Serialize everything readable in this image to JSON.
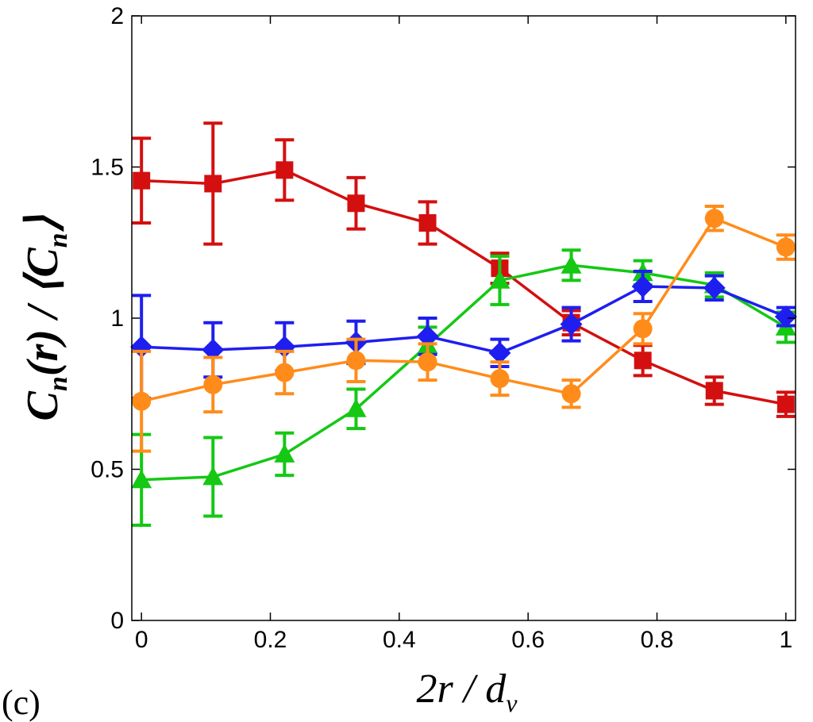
{
  "chart_data": {
    "type": "line",
    "panel_label": "(c)",
    "xlabel": {
      "main": "2r / d",
      "sub": "v"
    },
    "ylabel": {
      "p1": "C",
      "s1": "n",
      "p2": "(r) / ⟨C",
      "s2": "n",
      "p3": "⟩"
    },
    "xlim": [
      -0.015,
      1.015
    ],
    "ylim": [
      0,
      2
    ],
    "xticks": [
      0,
      0.2,
      0.4,
      0.6,
      0.8,
      1
    ],
    "xtick_labels": [
      "0",
      "0.2",
      "0.4",
      "0.6",
      "0.8",
      "1"
    ],
    "yticks": [
      0,
      0.5,
      1,
      1.5,
      2
    ],
    "ytick_labels": [
      "0",
      "0.5",
      "1",
      "1.5",
      "2"
    ],
    "grid": false,
    "series": [
      {
        "name": "red-squares",
        "color": "#d40f0f",
        "marker": "square",
        "x": [
          0,
          0.111,
          0.222,
          0.333,
          0.444,
          0.556,
          0.667,
          0.778,
          0.889,
          1
        ],
        "y": [
          1.455,
          1.445,
          1.49,
          1.38,
          1.315,
          1.165,
          0.985,
          0.86,
          0.76,
          0.715
        ],
        "err": [
          0.14,
          0.2,
          0.1,
          0.085,
          0.07,
          0.05,
          0.04,
          0.05,
          0.045,
          0.04
        ]
      },
      {
        "name": "green-triangles",
        "color": "#14c814",
        "marker": "triangle",
        "x": [
          0,
          0.111,
          0.222,
          0.333,
          0.444,
          0.556,
          0.667,
          0.778,
          0.889,
          1
        ],
        "y": [
          0.465,
          0.475,
          0.55,
          0.7,
          0.91,
          1.125,
          1.175,
          1.15,
          1.11,
          0.97
        ],
        "err": [
          0.15,
          0.13,
          0.07,
          0.065,
          0.06,
          0.08,
          0.05,
          0.04,
          0.04,
          0.05
        ]
      },
      {
        "name": "blue-diamonds",
        "color": "#1e1ef0",
        "marker": "diamond",
        "x": [
          0,
          0.111,
          0.222,
          0.333,
          0.444,
          0.556,
          0.667,
          0.778,
          0.889,
          1
        ],
        "y": [
          0.905,
          0.895,
          0.905,
          0.92,
          0.94,
          0.885,
          0.98,
          1.105,
          1.1,
          1.005
        ],
        "err": [
          0.17,
          0.09,
          0.08,
          0.07,
          0.06,
          0.045,
          0.055,
          0.05,
          0.04,
          0.03
        ]
      },
      {
        "name": "orange-circles",
        "color": "#ff8c1a",
        "marker": "circle",
        "x": [
          0,
          0.111,
          0.222,
          0.333,
          0.444,
          0.556,
          0.667,
          0.778,
          0.889,
          1
        ],
        "y": [
          0.725,
          0.78,
          0.82,
          0.86,
          0.855,
          0.8,
          0.75,
          0.965,
          1.33,
          1.235
        ],
        "err": [
          0.165,
          0.09,
          0.07,
          0.07,
          0.06,
          0.055,
          0.045,
          0.05,
          0.04,
          0.04
        ]
      }
    ]
  }
}
